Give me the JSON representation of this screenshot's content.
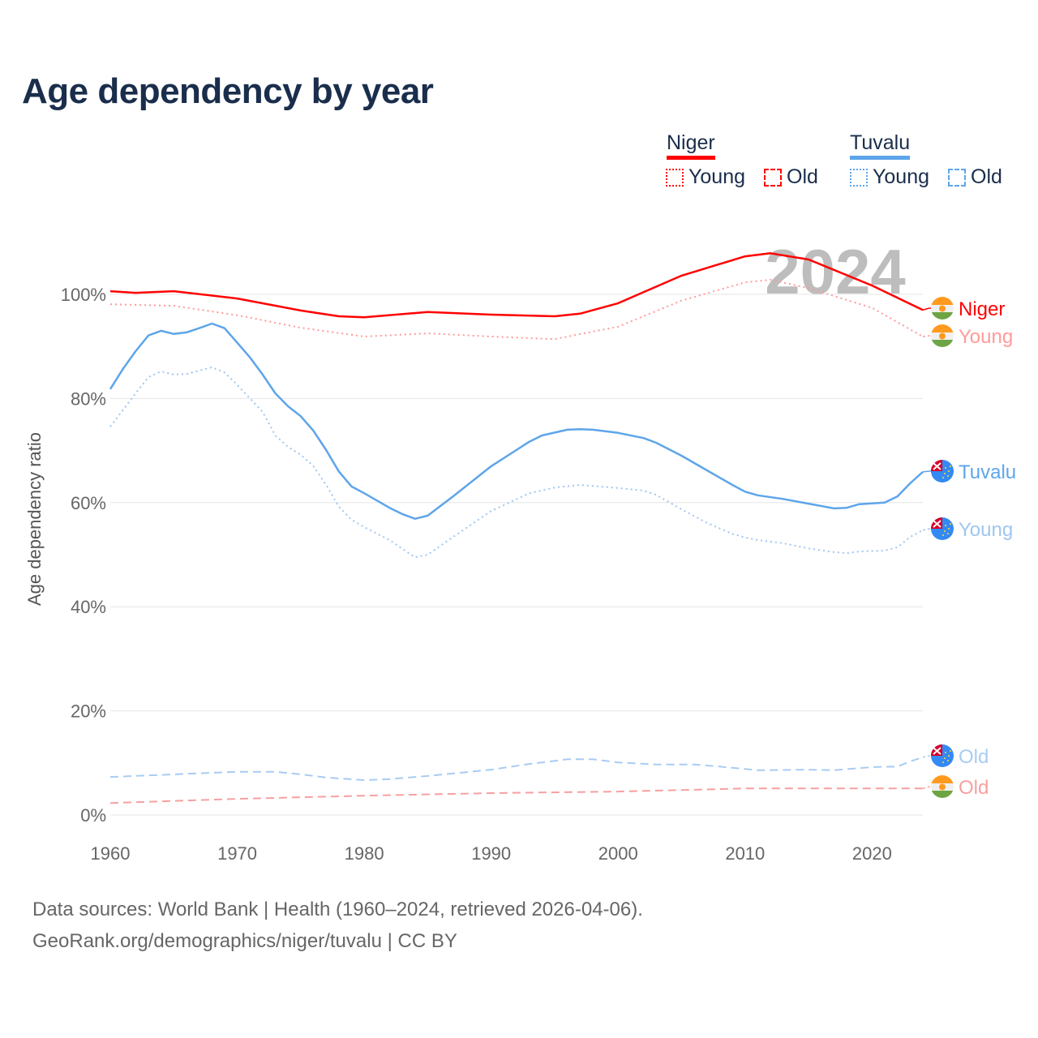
{
  "title": "Age dependency by year",
  "legend": {
    "countries": [
      {
        "name": "Niger",
        "color": "#ff0000",
        "young_label": "Young",
        "old_label": "Old"
      },
      {
        "name": "Tuvalu",
        "color": "#5ea5ea",
        "young_label": "Young",
        "old_label": "Old"
      }
    ]
  },
  "footer": {
    "line1": "Data sources: World Bank | Health (1960–2024, retrieved 2026-04-06).",
    "line2": "GeoRank.org/demographics/niger/tuvalu | CC BY"
  },
  "chart_data": {
    "type": "line",
    "title": "Age dependency by year",
    "ylabel": "Age dependency ratio",
    "xlabel": "",
    "xlim": [
      1960,
      2024
    ],
    "ylim": [
      0,
      110
    ],
    "x_ticks": [
      "1960",
      "1970",
      "1980",
      "1990",
      "2000",
      "2010",
      "2020"
    ],
    "y_ticks": [
      "0%",
      "20%",
      "40%",
      "60%",
      "80%",
      "100%"
    ],
    "grid": true,
    "year_watermark": "2024",
    "series": [
      {
        "name": "Niger",
        "end_label": "Niger",
        "color": "#ff0000",
        "style": "solid",
        "flag": "niger",
        "points": [
          [
            1960,
            100.6
          ],
          [
            1962,
            100.3
          ],
          [
            1965,
            100.6
          ],
          [
            1970,
            99.2
          ],
          [
            1975,
            96.9
          ],
          [
            1978,
            95.8
          ],
          [
            1980,
            95.6
          ],
          [
            1985,
            96.6
          ],
          [
            1990,
            96.1
          ],
          [
            1995,
            95.8
          ],
          [
            1997,
            96.3
          ],
          [
            2000,
            98.3
          ],
          [
            2005,
            103.6
          ],
          [
            2010,
            107.3
          ],
          [
            2012,
            107.9
          ],
          [
            2015,
            106.7
          ],
          [
            2020,
            101.7
          ],
          [
            2024,
            97.0
          ]
        ]
      },
      {
        "name": "Niger Young",
        "end_label": "Young",
        "color": "#ff9a9a",
        "style": "dotted",
        "flag": "niger",
        "points": [
          [
            1960,
            98.1
          ],
          [
            1965,
            97.8
          ],
          [
            1970,
            96.0
          ],
          [
            1975,
            93.6
          ],
          [
            1980,
            91.9
          ],
          [
            1985,
            92.5
          ],
          [
            1990,
            91.9
          ],
          [
            1995,
            91.4
          ],
          [
            2000,
            93.8
          ],
          [
            2005,
            98.8
          ],
          [
            2010,
            102.3
          ],
          [
            2012,
            102.8
          ],
          [
            2015,
            101.2
          ],
          [
            2020,
            97.4
          ],
          [
            2024,
            91.9
          ]
        ]
      },
      {
        "name": "Niger Old",
        "end_label": "Old",
        "color": "#f7a0a0",
        "style": "dashed",
        "flag": "niger",
        "points": [
          [
            1960,
            2.3
          ],
          [
            1970,
            3.1
          ],
          [
            1980,
            3.7
          ],
          [
            1990,
            4.2
          ],
          [
            2000,
            4.5
          ],
          [
            2010,
            5.1
          ],
          [
            2020,
            5.1
          ],
          [
            2024,
            5.1
          ]
        ]
      },
      {
        "name": "Tuvalu",
        "end_label": "Tuvalu",
        "color": "#5ea5ea",
        "style": "solid",
        "flag": "tuvalu",
        "points": [
          [
            1960,
            81.8
          ],
          [
            1961,
            85.7
          ],
          [
            1962,
            89.1
          ],
          [
            1963,
            92.1
          ],
          [
            1964,
            93.0
          ],
          [
            1965,
            92.4
          ],
          [
            1966,
            92.7
          ],
          [
            1967,
            93.5
          ],
          [
            1968,
            94.4
          ],
          [
            1969,
            93.5
          ],
          [
            1970,
            90.7
          ],
          [
            1971,
            87.9
          ],
          [
            1972,
            84.6
          ],
          [
            1973,
            81.0
          ],
          [
            1974,
            78.5
          ],
          [
            1975,
            76.6
          ],
          [
            1976,
            73.8
          ],
          [
            1977,
            70.1
          ],
          [
            1978,
            66.0
          ],
          [
            1979,
            63.1
          ],
          [
            1980,
            61.8
          ],
          [
            1982,
            59.0
          ],
          [
            1983,
            57.8
          ],
          [
            1984,
            56.9
          ],
          [
            1985,
            57.5
          ],
          [
            1987,
            61.2
          ],
          [
            1990,
            67.0
          ],
          [
            1993,
            71.7
          ],
          [
            1994,
            72.9
          ],
          [
            1996,
            74.0
          ],
          [
            1997,
            74.1
          ],
          [
            1998,
            74.0
          ],
          [
            2000,
            73.4
          ],
          [
            2002,
            72.4
          ],
          [
            2003,
            71.5
          ],
          [
            2005,
            69.0
          ],
          [
            2007,
            66.2
          ],
          [
            2009,
            63.4
          ],
          [
            2010,
            62.1
          ],
          [
            2011,
            61.4
          ],
          [
            2013,
            60.7
          ],
          [
            2015,
            59.8
          ],
          [
            2017,
            58.9
          ],
          [
            2018,
            59.0
          ],
          [
            2019,
            59.7
          ],
          [
            2021,
            60.0
          ],
          [
            2022,
            61.2
          ],
          [
            2023,
            63.7
          ],
          [
            2024,
            65.9
          ]
        ]
      },
      {
        "name": "Tuvalu Young",
        "end_label": "Young",
        "color": "#9fc6f0",
        "style": "dotted",
        "flag": "tuvalu",
        "points": [
          [
            1960,
            74.6
          ],
          [
            1962,
            81.0
          ],
          [
            1963,
            84.1
          ],
          [
            1964,
            85.2
          ],
          [
            1965,
            84.6
          ],
          [
            1966,
            84.7
          ],
          [
            1968,
            86.0
          ],
          [
            1969,
            85.0
          ],
          [
            1970,
            82.6
          ],
          [
            1972,
            77.4
          ],
          [
            1973,
            72.9
          ],
          [
            1974,
            70.7
          ],
          [
            1975,
            69.2
          ],
          [
            1976,
            67.0
          ],
          [
            1977,
            63.4
          ],
          [
            1978,
            59.2
          ],
          [
            1979,
            56.7
          ],
          [
            1980,
            55.3
          ],
          [
            1982,
            52.8
          ],
          [
            1984,
            49.5
          ],
          [
            1985,
            50.0
          ],
          [
            1987,
            53.4
          ],
          [
            1990,
            58.4
          ],
          [
            1993,
            61.8
          ],
          [
            1995,
            62.9
          ],
          [
            1997,
            63.4
          ],
          [
            2000,
            62.8
          ],
          [
            2002,
            62.3
          ],
          [
            2003,
            61.5
          ],
          [
            2005,
            58.7
          ],
          [
            2007,
            56.1
          ],
          [
            2009,
            54.0
          ],
          [
            2010,
            53.3
          ],
          [
            2011,
            52.8
          ],
          [
            2013,
            52.2
          ],
          [
            2015,
            51.2
          ],
          [
            2017,
            50.5
          ],
          [
            2018,
            50.3
          ],
          [
            2019,
            50.6
          ],
          [
            2021,
            50.8
          ],
          [
            2022,
            51.4
          ],
          [
            2023,
            53.4
          ],
          [
            2024,
            54.7
          ]
        ]
      },
      {
        "name": "Tuvalu Old",
        "end_label": "Old",
        "color": "#a8ccf2",
        "style": "dashed",
        "flag": "tuvalu",
        "points": [
          [
            1960,
            7.3
          ],
          [
            1965,
            7.8
          ],
          [
            1970,
            8.3
          ],
          [
            1973,
            8.3
          ],
          [
            1975,
            7.8
          ],
          [
            1977,
            7.2
          ],
          [
            1980,
            6.7
          ],
          [
            1982,
            6.9
          ],
          [
            1985,
            7.5
          ],
          [
            1990,
            8.7
          ],
          [
            1993,
            9.8
          ],
          [
            1996,
            10.7
          ],
          [
            1998,
            10.7
          ],
          [
            2000,
            10.1
          ],
          [
            2003,
            9.7
          ],
          [
            2006,
            9.7
          ],
          [
            2008,
            9.3
          ],
          [
            2011,
            8.6
          ],
          [
            2015,
            8.7
          ],
          [
            2017,
            8.6
          ],
          [
            2020,
            9.2
          ],
          [
            2022,
            9.3
          ],
          [
            2023,
            10.3
          ],
          [
            2024,
            11.1
          ]
        ]
      }
    ]
  }
}
